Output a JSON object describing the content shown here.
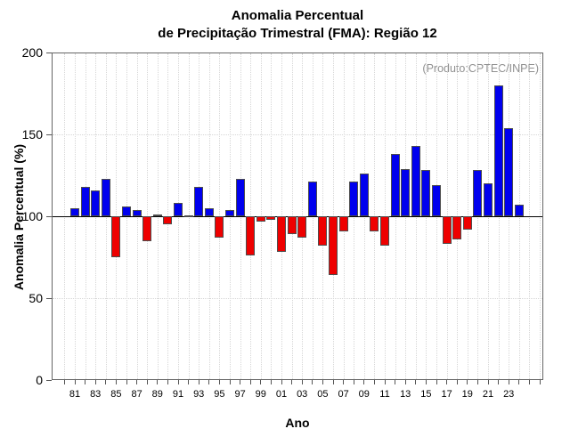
{
  "chart_data": {
    "type": "bar",
    "title_line1": "Anomalia Percentual",
    "title_line2": "de Precipitação Trimestral (FMA): Região 12",
    "annotation": "(Produto:CPTEC/INPE)",
    "xlabel": "Ano",
    "ylabel": "Anomalia Percentual (%)",
    "ylim": [
      0,
      200
    ],
    "yticks": [
      0,
      50,
      100,
      150,
      200
    ],
    "baseline": 100,
    "grid": {
      "horizontal_dotted_at": [
        50,
        150
      ],
      "vertical_dotted": "every year",
      "solid_line_at": 100
    },
    "legend_position": "none",
    "bar_color_above_baseline": "#0000EE",
    "bar_color_below_baseline": "#EE0000",
    "bar_border_color": "#4D4D4D",
    "x_tick_labels": [
      "81",
      "83",
      "85",
      "87",
      "89",
      "91",
      "93",
      "95",
      "97",
      "99",
      "01",
      "03",
      "05",
      "07",
      "09",
      "11",
      "13",
      "15",
      "17",
      "19",
      "21",
      "23"
    ],
    "years": [
      1981,
      1982,
      1983,
      1984,
      1985,
      1986,
      1987,
      1988,
      1989,
      1990,
      1991,
      1992,
      1993,
      1994,
      1995,
      1996,
      1997,
      1998,
      1999,
      2000,
      2001,
      2002,
      2003,
      2004,
      2005,
      2006,
      2007,
      2008,
      2009,
      2010,
      2011,
      2012,
      2013,
      2014,
      2015,
      2016,
      2017,
      2018,
      2019,
      2020,
      2021,
      2022,
      2023,
      2024
    ],
    "values": [
      105,
      118,
      116,
      123,
      75,
      106,
      104,
      85,
      101,
      95,
      108,
      100,
      118,
      105,
      87,
      104,
      123,
      76,
      97,
      98,
      78,
      89,
      87,
      121,
      82,
      64,
      91,
      121,
      126,
      91,
      82,
      138,
      129,
      143,
      128,
      119,
      83,
      86,
      92,
      128,
      120,
      180,
      154,
      107
    ]
  }
}
